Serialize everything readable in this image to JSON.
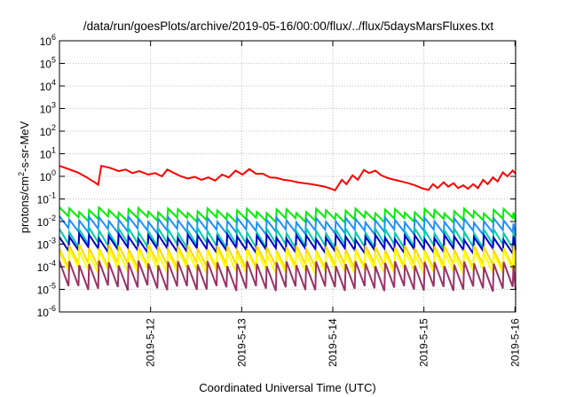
{
  "chart_data": {
    "type": "line",
    "title": "/data/run/goesPlots/archive/2019-05-16/00:00/flux/../flux/5daysMarsFluxes.txt",
    "xlabel": "Coordinated Universal Time (UTC)",
    "ylabel": {
      "base": "protons/cm",
      "sup": "2",
      "rest": "-s-sr-MeV"
    },
    "x_range": [
      "2019-05-11 00:00",
      "2019-05-16 00:10"
    ],
    "x_ticks": [
      "2019-5-12",
      "2019-5-13",
      "2019-5-14",
      "2019-5-15",
      "2019-5-16"
    ],
    "y_scale": "log",
    "y_range": [
      1e-06,
      1000000
    ],
    "y_tick_exponents": [
      -6,
      -5,
      -4,
      -3,
      -2,
      -1,
      0,
      1,
      2,
      3,
      4,
      5,
      6
    ],
    "grid": true,
    "series": [
      {
        "color": "#ff0000",
        "points": [
          [
            "2019-05-11 00:00",
            2.9
          ],
          [
            "2019-05-11 02:24",
            2.1
          ],
          [
            "2019-05-11 04:48",
            1.5
          ],
          [
            "2019-05-11 07:12",
            0.9
          ],
          [
            "2019-05-11 09:36",
            0.5
          ],
          [
            "2019-05-11 10:12",
            0.42
          ],
          [
            "2019-05-11 11:00",
            2.9
          ],
          [
            "2019-05-11 13:12",
            2.4
          ],
          [
            "2019-05-11 15:36",
            1.7
          ],
          [
            "2019-05-11 17:24",
            2.0
          ],
          [
            "2019-05-11 19:12",
            1.4
          ],
          [
            "2019-05-11 21:00",
            1.7
          ],
          [
            "2019-05-11 23:24",
            1.2
          ],
          [
            "2019-05-12 01:12",
            1.4
          ],
          [
            "2019-05-12 03:00",
            1.0
          ],
          [
            "2019-05-12 04:24",
            2.0
          ],
          [
            "2019-05-12 06:12",
            1.4
          ],
          [
            "2019-05-12 08:00",
            1.0
          ],
          [
            "2019-05-12 09:48",
            0.8
          ],
          [
            "2019-05-12 11:36",
            0.95
          ],
          [
            "2019-05-12 13:24",
            0.7
          ],
          [
            "2019-05-12 15:12",
            0.9
          ],
          [
            "2019-05-12 17:00",
            0.65
          ],
          [
            "2019-05-12 18:48",
            1.2
          ],
          [
            "2019-05-12 20:36",
            0.9
          ],
          [
            "2019-05-12 22:24",
            1.8
          ],
          [
            "2019-05-13 00:12",
            1.2
          ],
          [
            "2019-05-13 02:00",
            2.1
          ],
          [
            "2019-05-13 03:48",
            1.3
          ],
          [
            "2019-05-13 05:36",
            1.3
          ],
          [
            "2019-05-13 07:24",
            0.9
          ],
          [
            "2019-05-13 09:12",
            0.85
          ],
          [
            "2019-05-13 11:00",
            0.7
          ],
          [
            "2019-05-13 12:48",
            0.65
          ],
          [
            "2019-05-13 14:36",
            0.55
          ],
          [
            "2019-05-13 16:24",
            0.5
          ],
          [
            "2019-05-13 18:12",
            0.45
          ],
          [
            "2019-05-13 20:00",
            0.4
          ],
          [
            "2019-05-13 21:48",
            0.35
          ],
          [
            "2019-05-13 23:36",
            0.28
          ],
          [
            "2019-05-14 00:36",
            0.24
          ],
          [
            "2019-05-14 02:24",
            0.7
          ],
          [
            "2019-05-14 03:36",
            0.45
          ],
          [
            "2019-05-14 05:12",
            1.1
          ],
          [
            "2019-05-14 06:36",
            0.7
          ],
          [
            "2019-05-14 08:12",
            1.9
          ],
          [
            "2019-05-14 09:36",
            1.4
          ],
          [
            "2019-05-14 11:12",
            1.8
          ],
          [
            "2019-05-14 12:48",
            1.1
          ],
          [
            "2019-05-14 14:24",
            0.85
          ],
          [
            "2019-05-14 16:12",
            0.7
          ],
          [
            "2019-05-14 18:00",
            0.6
          ],
          [
            "2019-05-14 19:48",
            0.5
          ],
          [
            "2019-05-14 21:36",
            0.4
          ],
          [
            "2019-05-14 23:24",
            0.3
          ],
          [
            "2019-05-15 01:12",
            0.25
          ],
          [
            "2019-05-15 02:24",
            0.45
          ],
          [
            "2019-05-15 03:36",
            0.3
          ],
          [
            "2019-05-15 05:12",
            0.55
          ],
          [
            "2019-05-15 06:24",
            0.35
          ],
          [
            "2019-05-15 07:48",
            0.5
          ],
          [
            "2019-05-15 09:00",
            0.3
          ],
          [
            "2019-05-15 10:24",
            0.4
          ],
          [
            "2019-05-15 11:36",
            0.28
          ],
          [
            "2019-05-15 13:00",
            0.45
          ],
          [
            "2019-05-15 14:12",
            0.3
          ],
          [
            "2019-05-15 15:36",
            0.7
          ],
          [
            "2019-05-15 16:48",
            0.45
          ],
          [
            "2019-05-15 18:12",
            0.9
          ],
          [
            "2019-05-15 19:24",
            0.6
          ],
          [
            "2019-05-15 20:48",
            1.5
          ],
          [
            "2019-05-15 22:00",
            1.0
          ],
          [
            "2019-05-15 23:24",
            1.8
          ],
          [
            "2019-05-16 00:10",
            1.3
          ]
        ]
      },
      {
        "color": "#00ee00",
        "base": [
          0.035,
          0.032,
          0.03,
          0.03,
          0.03,
          0.03
        ],
        "trough": 0.4
      },
      {
        "color": "#1e90ff",
        "base": [
          0.014,
          0.013,
          0.012,
          0.012,
          0.012,
          0.011
        ],
        "trough": 0.3
      },
      {
        "color": "#00ccaa",
        "base": [
          0.0045,
          0.0042,
          0.004,
          0.004,
          0.004,
          0.0038
        ],
        "trough": 0.22
      },
      {
        "color": "#0000cc",
        "base": [
          0.0025,
          0.0022,
          0.0022,
          0.0021,
          0.0021,
          0.002
        ],
        "trough": 0.25
      },
      {
        "color": "#ffd700",
        "base": [
          0.0008,
          0.0008,
          0.0007,
          0.0007,
          0.0007,
          0.0007
        ],
        "trough": 0.15
      },
      {
        "color": "#ffff00",
        "base": [
          0.0005,
          0.0005,
          0.00045,
          0.00045,
          0.00045,
          0.00045
        ],
        "trough": 0.14
      },
      {
        "color": "#993366",
        "base": [
          0.00015,
          0.00015,
          0.00014,
          0.00014,
          0.00014,
          0.00013
        ],
        "trough": 0.08
      }
    ]
  }
}
